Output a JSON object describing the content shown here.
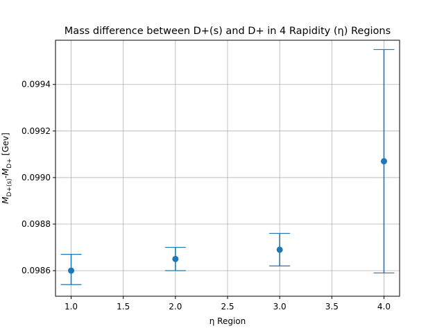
{
  "chart_data": {
    "type": "scatter",
    "title": "Mass difference between D+(s) and D+ in 4 Rapidity (η) Regions",
    "xlabel": "η Region",
    "ylabel": "M_{D+(s)}-M_{D+} [Gev]",
    "xlim": [
      0.85,
      4.15
    ],
    "ylim": [
      0.09849,
      0.09959
    ],
    "x_ticks": [
      1.0,
      1.5,
      2.0,
      2.5,
      3.0,
      3.5,
      4.0
    ],
    "x_tick_labels": [
      "1.0",
      "1.5",
      "2.0",
      "2.5",
      "3.0",
      "3.5",
      "4.0"
    ],
    "y_ticks": [
      0.0986,
      0.0988,
      0.099,
      0.0992,
      0.0994
    ],
    "y_tick_labels": [
      "0.0986",
      "0.0988",
      "0.0990",
      "0.0992",
      "0.0994"
    ],
    "grid": true,
    "color": "#1f77b4",
    "series": [
      {
        "x": [
          1,
          2,
          3,
          4
        ],
        "y": [
          0.0986,
          0.09865,
          0.09869,
          0.09907
        ],
        "yerr_low": [
          0.09854,
          0.0986,
          0.09862,
          0.09859
        ],
        "yerr_high": [
          0.09867,
          0.0987,
          0.09876,
          0.09955
        ]
      }
    ]
  }
}
